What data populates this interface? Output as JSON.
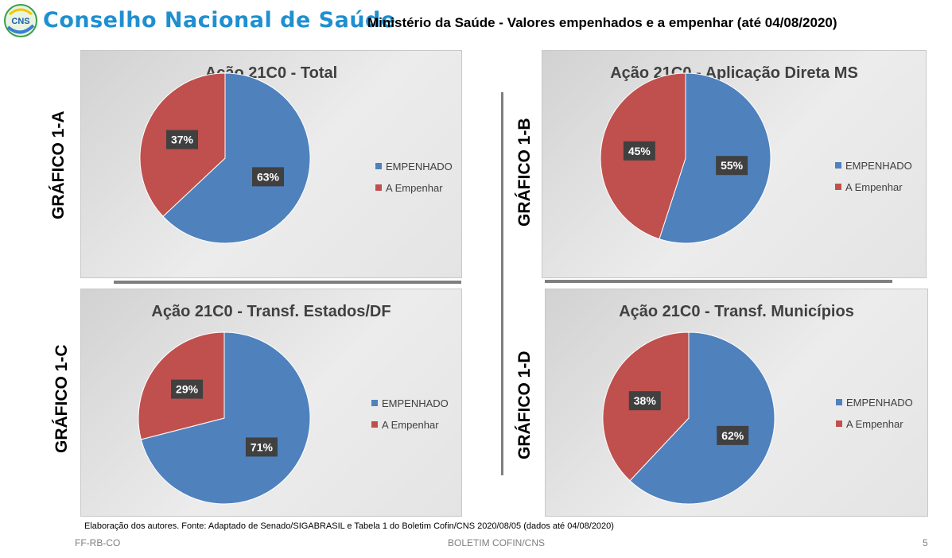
{
  "header": {
    "logo_text": "CNS",
    "org_title": "Conselho Nacional de Saúde",
    "subtitle": "Ministério da Saúde - Valores empenhados e a empenhar (até 04/08/2020)"
  },
  "colors": {
    "empenhado": "#4f81bd",
    "a_empenhar": "#c0504d"
  },
  "panels": [
    {
      "side_label": "GRÁFICO 1-A"
    },
    {
      "side_label": "GRÁFICO 1-B"
    },
    {
      "side_label": "GRÁFICO 1-C"
    },
    {
      "side_label": "GRÁFICO 1-D"
    }
  ],
  "chart_data": [
    {
      "type": "pie",
      "title": "Ação 21C0 - Total",
      "categories": [
        "EMPENHADO",
        "A Empenhar"
      ],
      "values": [
        63,
        37
      ],
      "labels": [
        "63%",
        "37%"
      ],
      "legend_position": "right"
    },
    {
      "type": "pie",
      "title": "Ação 21C0 - Aplicação Direta MS",
      "categories": [
        "EMPENHADO",
        "A Empenhar"
      ],
      "values": [
        55,
        45
      ],
      "labels": [
        "55%",
        "45%"
      ],
      "legend_position": "right"
    },
    {
      "type": "pie",
      "title": "Ação 21C0 - Transf. Estados/DF",
      "categories": [
        "EMPENHADO",
        "A Empenhar"
      ],
      "values": [
        71,
        29
      ],
      "labels": [
        "71%",
        "29%"
      ],
      "legend_position": "right"
    },
    {
      "type": "pie",
      "title": "Ação 21C0 - Transf. Municípios",
      "categories": [
        "EMPENHADO",
        "A Empenhar"
      ],
      "values": [
        62,
        38
      ],
      "labels": [
        "62%",
        "38%"
      ],
      "legend_position": "right"
    }
  ],
  "source_note": "Elaboração dos autores. Fonte: Adaptado de Senado/SIGABRASIL e Tabela 1 do Boletim Cofin/CNS 2020/08/05  (dados até 04/08/2020)",
  "footer": {
    "left": "FF-RB-CO",
    "center": "BOLETIM COFIN/CNS",
    "page_number": "5"
  }
}
